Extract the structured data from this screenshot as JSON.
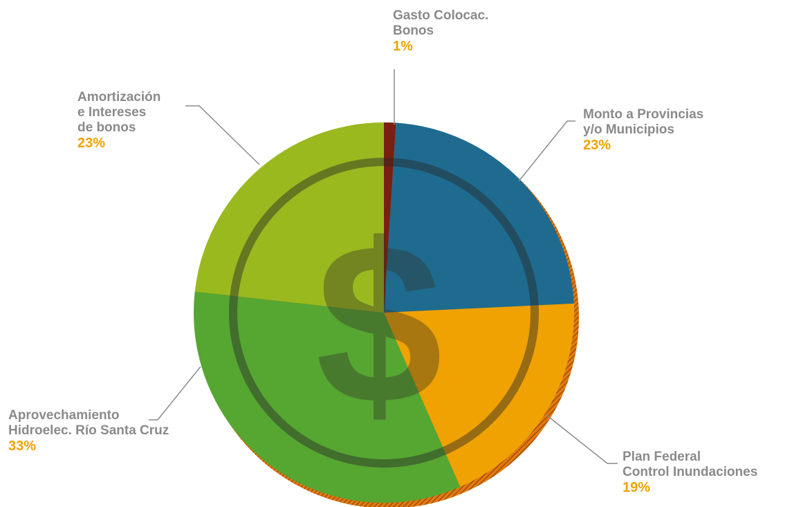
{
  "chart_data": {
    "type": "pie",
    "categories": [
      "Gasto Colocac.\nBonos",
      "Monto a Provincias\ny/o Municipios",
      "Plan Federal\nControl Inundaciones",
      "Aprovechamiento\nHidroelec. Río Santa Cruz",
      "Amortización\ne Intereses\nde bonos"
    ],
    "values": [
      1,
      23,
      19,
      33,
      23
    ],
    "value_labels": [
      "1%",
      "23%",
      "19%",
      "33%",
      "23%"
    ],
    "colors": [
      "#7a1f12",
      "#1e6b8f",
      "#f0a202",
      "#56a632",
      "#9ab91e"
    ],
    "center_symbol": "$"
  }
}
